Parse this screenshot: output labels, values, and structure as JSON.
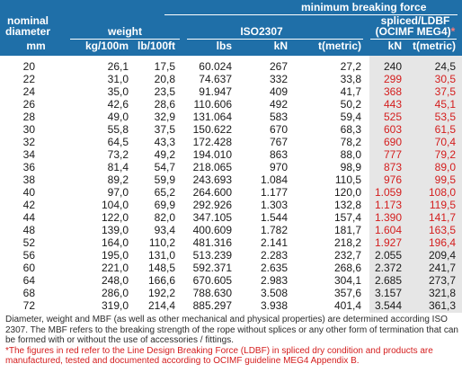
{
  "colors": {
    "header_bg": "#1f6fa8",
    "ldbf_band": "#e6e6e6",
    "ldbf_text": "#d41d1d",
    "text": "#1a1a1a"
  },
  "header": {
    "group_mbf": "minimum breaking force",
    "nominal_diameter_line1": "nominal",
    "nominal_diameter_line2": "diameter",
    "group_weight": "weight",
    "group_iso": "ISO2307",
    "group_spliced_line1": "spliced/LDBF",
    "group_spliced_line2": "(OCIMF MEG4)",
    "group_spliced_mark": "*",
    "col_mm": "mm",
    "col_kg": "kg/100m",
    "col_lb": "lb/100ft",
    "col_lbs": "lbs",
    "col_kn": "kN",
    "col_tmetric": "t(metric)",
    "col_spliced_kn": "kN",
    "col_spliced_t": "t(metric)"
  },
  "rows": [
    {
      "mm": "20",
      "kg": "26,1",
      "lb": "17,5",
      "lbs": "60.024",
      "kn": "267",
      "t": "27,2",
      "skn": "240",
      "st": "24,5",
      "red": false
    },
    {
      "mm": "22",
      "kg": "31,0",
      "lb": "20,8",
      "lbs": "74.637",
      "kn": "332",
      "t": "33,8",
      "skn": "299",
      "st": "30,5",
      "red": true
    },
    {
      "mm": "24",
      "kg": "35,0",
      "lb": "23,5",
      "lbs": "91.947",
      "kn": "409",
      "t": "41,7",
      "skn": "368",
      "st": "37,5",
      "red": true
    },
    {
      "mm": "26",
      "kg": "42,6",
      "lb": "28,6",
      "lbs": "110.606",
      "kn": "492",
      "t": "50,2",
      "skn": "443",
      "st": "45,1",
      "red": true
    },
    {
      "mm": "28",
      "kg": "49,0",
      "lb": "32,9",
      "lbs": "131.064",
      "kn": "583",
      "t": "59,4",
      "skn": "525",
      "st": "53,5",
      "red": true
    },
    {
      "mm": "30",
      "kg": "55,8",
      "lb": "37,5",
      "lbs": "150.622",
      "kn": "670",
      "t": "68,3",
      "skn": "603",
      "st": "61,5",
      "red": true
    },
    {
      "mm": "32",
      "kg": "64,5",
      "lb": "43,3",
      "lbs": "172.428",
      "kn": "767",
      "t": "78,2",
      "skn": "690",
      "st": "70,4",
      "red": true
    },
    {
      "mm": "34",
      "kg": "73,2",
      "lb": "49,2",
      "lbs": "194.010",
      "kn": "863",
      "t": "88,0",
      "skn": "777",
      "st": "79,2",
      "red": true
    },
    {
      "mm": "36",
      "kg": "81,4",
      "lb": "54,7",
      "lbs": "218.065",
      "kn": "970",
      "t": "98,9",
      "skn": "873",
      "st": "89,0",
      "red": true
    },
    {
      "mm": "38",
      "kg": "89,2",
      "lb": "59,9",
      "lbs": "243.693",
      "kn": "1.084",
      "t": "110,5",
      "skn": "976",
      "st": "99,5",
      "red": true
    },
    {
      "mm": "40",
      "kg": "97,0",
      "lb": "65,2",
      "lbs": "264.600",
      "kn": "1.177",
      "t": "120,0",
      "skn": "1.059",
      "st": "108,0",
      "red": true
    },
    {
      "mm": "42",
      "kg": "104,0",
      "lb": "69,9",
      "lbs": "292.926",
      "kn": "1.303",
      "t": "132,8",
      "skn": "1.173",
      "st": "119,5",
      "red": true
    },
    {
      "mm": "44",
      "kg": "122,0",
      "lb": "82,0",
      "lbs": "347.105",
      "kn": "1.544",
      "t": "157,4",
      "skn": "1.390",
      "st": "141,7",
      "red": true
    },
    {
      "mm": "48",
      "kg": "139,0",
      "lb": "93,4",
      "lbs": "400.609",
      "kn": "1.782",
      "t": "181,7",
      "skn": "1.604",
      "st": "163,5",
      "red": true
    },
    {
      "mm": "52",
      "kg": "164,0",
      "lb": "110,2",
      "lbs": "481.316",
      "kn": "2.141",
      "t": "218,2",
      "skn": "1.927",
      "st": "196,4",
      "red": true
    },
    {
      "mm": "56",
      "kg": "195,0",
      "lb": "131,0",
      "lbs": "513.239",
      "kn": "2.283",
      "t": "232,7",
      "skn": "2.055",
      "st": "209,4",
      "red": false
    },
    {
      "mm": "60",
      "kg": "221,0",
      "lb": "148,5",
      "lbs": "592.371",
      "kn": "2.635",
      "t": "268,6",
      "skn": "2.372",
      "st": "241,7",
      "red": false
    },
    {
      "mm": "64",
      "kg": "248,0",
      "lb": "166,6",
      "lbs": "670.605",
      "kn": "2.983",
      "t": "304,1",
      "skn": "2.685",
      "st": "273,7",
      "red": false
    },
    {
      "mm": "68",
      "kg": "286,0",
      "lb": "192,2",
      "lbs": "788.630",
      "kn": "3.508",
      "t": "357,6",
      "skn": "3.157",
      "st": "321,8",
      "red": false
    },
    {
      "mm": "72",
      "kg": "319,0",
      "lb": "214,4",
      "lbs": "885.297",
      "kn": "3.938",
      "t": "401,4",
      "skn": "3.544",
      "st": "361,3",
      "red": false
    }
  ],
  "footer": {
    "note1": "Diameter, weight and MBF (as well as other mechanical and physical properties) are determined according ISO 2307. The MBF refers to the breaking strength of the rope without splices or any other form of termination that can be formed with or without the use of accessories / fittings.",
    "note2": "*The figures in red refer to the Line Design Breaking Force (LDBF) in spliced dry condition and products are manufactured, tested and documented according to OCIMF guideline MEG4 Appendix B."
  }
}
